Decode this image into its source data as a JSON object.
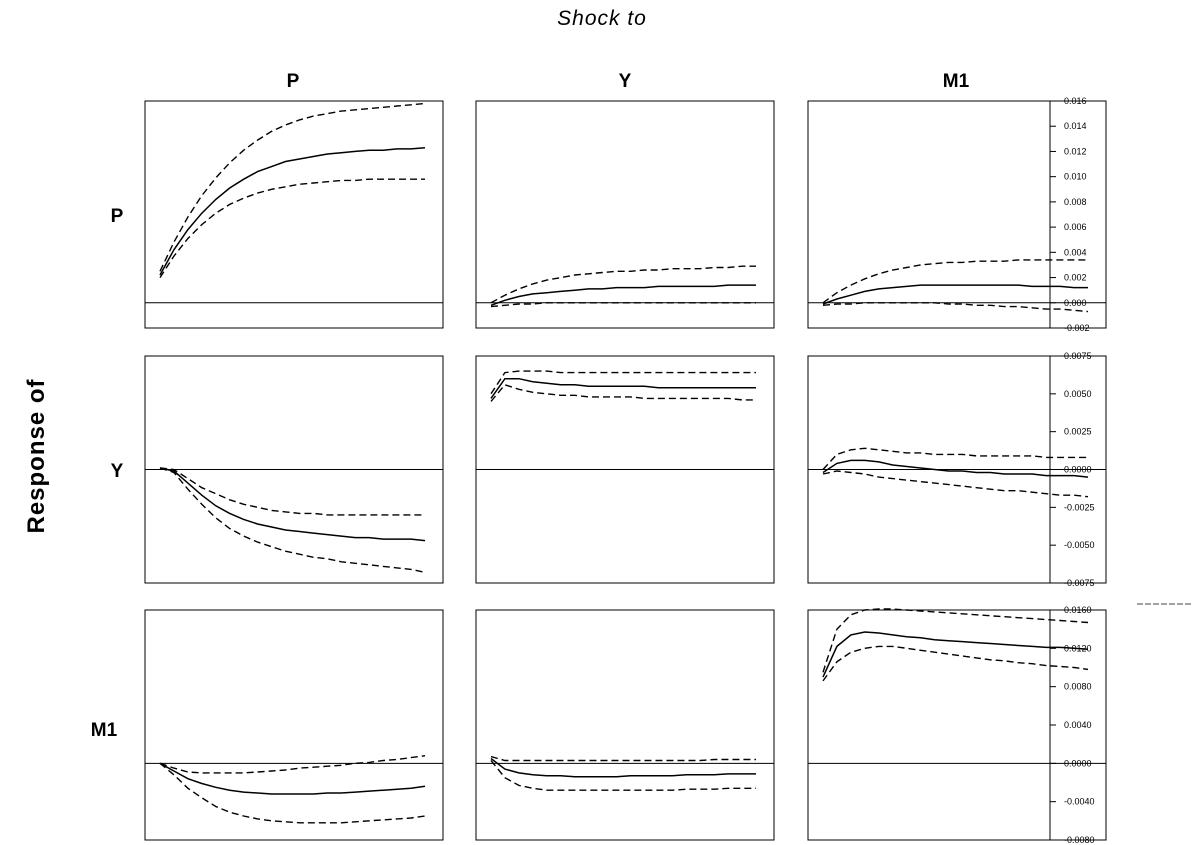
{
  "header": {
    "title": "Shock to"
  },
  "side": {
    "ylabel": "Response of"
  },
  "columns": [
    "P",
    "Y",
    "M1"
  ],
  "rows": [
    "P",
    "Y",
    "M1"
  ],
  "chart_data": {
    "type": "line",
    "layout": "3x3 panel grid of impulse responses (shared y-axis per row, shown on right)",
    "title": "Shock to",
    "ylabel": "Response of",
    "grid": false,
    "rows": [
      {
        "name": "P",
        "ylim": [
          -0.002,
          0.016
        ],
        "yticks": [
          "0.016",
          "0.014",
          "0.012",
          "0.010",
          "0.008",
          "0.006",
          "0.004",
          "0.002",
          "0.000",
          "-0.002"
        ],
        "ytick_values": [
          0.016,
          0.014,
          0.012,
          0.01,
          0.008,
          0.006,
          0.004,
          0.002,
          0.0,
          -0.002
        ],
        "panels": [
          {
            "shock": "P",
            "x": [
              1,
              2,
              3,
              4,
              5,
              6,
              7,
              8,
              9,
              10,
              11,
              12,
              13,
              14,
              15,
              16,
              17,
              18,
              19,
              20
            ],
            "response": [
              0.0022,
              0.0042,
              0.0058,
              0.0071,
              0.0082,
              0.0091,
              0.0098,
              0.0104,
              0.0108,
              0.0112,
              0.0114,
              0.0116,
              0.0118,
              0.0119,
              0.012,
              0.0121,
              0.0121,
              0.0122,
              0.0122,
              0.0123
            ],
            "upper": [
              0.0025,
              0.0048,
              0.0068,
              0.0085,
              0.0099,
              0.0111,
              0.0121,
              0.0129,
              0.0136,
              0.0141,
              0.0145,
              0.0148,
              0.015,
              0.0152,
              0.0153,
              0.0154,
              0.0155,
              0.0156,
              0.0157,
              0.0158
            ],
            "lower": [
              0.002,
              0.0037,
              0.0051,
              0.0062,
              0.0071,
              0.0078,
              0.0083,
              0.0087,
              0.009,
              0.0092,
              0.0094,
              0.0095,
              0.0096,
              0.0097,
              0.0097,
              0.0098,
              0.0098,
              0.0098,
              0.0098,
              0.0098
            ]
          },
          {
            "shock": "Y",
            "x": [
              1,
              2,
              3,
              4,
              5,
              6,
              7,
              8,
              9,
              10,
              11,
              12,
              13,
              14,
              15,
              16,
              17,
              18,
              19,
              20
            ],
            "response": [
              -0.0002,
              0.0002,
              0.0005,
              0.0007,
              0.0008,
              0.0009,
              0.001,
              0.0011,
              0.0011,
              0.0012,
              0.0012,
              0.0012,
              0.0013,
              0.0013,
              0.0013,
              0.0013,
              0.0013,
              0.0014,
              0.0014,
              0.0014
            ],
            "upper": [
              0.0,
              0.0006,
              0.0011,
              0.0015,
              0.0018,
              0.002,
              0.0022,
              0.0023,
              0.0024,
              0.0025,
              0.0025,
              0.0026,
              0.0026,
              0.0027,
              0.0027,
              0.0027,
              0.0028,
              0.0028,
              0.0029,
              0.0029
            ],
            "lower": [
              -0.0003,
              -0.0002,
              -0.0001,
              -0.0001,
              0.0,
              0.0,
              0.0,
              0.0,
              0.0,
              0.0,
              0.0,
              0.0,
              0.0,
              0.0,
              0.0,
              0.0,
              0.0,
              0.0,
              0.0,
              0.0
            ]
          },
          {
            "shock": "M1",
            "x": [
              1,
              2,
              3,
              4,
              5,
              6,
              7,
              8,
              9,
              10,
              11,
              12,
              13,
              14,
              15,
              16,
              17,
              18,
              19,
              20
            ],
            "response": [
              -0.0001,
              0.0003,
              0.0006,
              0.0009,
              0.0011,
              0.0012,
              0.0013,
              0.0014,
              0.0014,
              0.0014,
              0.0014,
              0.0014,
              0.0014,
              0.0014,
              0.0014,
              0.0013,
              0.0013,
              0.0013,
              0.0012,
              0.0012
            ],
            "upper": [
              0.0,
              0.0008,
              0.0014,
              0.0019,
              0.0023,
              0.0026,
              0.0028,
              0.003,
              0.0031,
              0.0032,
              0.0032,
              0.0033,
              0.0033,
              0.0033,
              0.0034,
              0.0034,
              0.0034,
              0.0034,
              0.0034,
              0.0034
            ],
            "lower": [
              -0.0002,
              -0.0001,
              -0.0001,
              0.0,
              0.0,
              0.0,
              0.0,
              0.0,
              0.0,
              -0.0001,
              -0.0001,
              -0.0002,
              -0.0002,
              -0.0003,
              -0.0003,
              -0.0004,
              -0.0005,
              -0.0005,
              -0.0006,
              -0.0007
            ]
          }
        ]
      },
      {
        "name": "Y",
        "ylim": [
          -0.0075,
          0.0075
        ],
        "yticks": [
          "0.0075",
          "0.0050",
          "0.0025",
          "0.0000",
          "-0.0025",
          "-0.0050",
          "-0.0075"
        ],
        "ytick_values": [
          0.0075,
          0.005,
          0.0025,
          0.0,
          -0.0025,
          -0.005,
          -0.0075
        ],
        "panels": [
          {
            "shock": "P",
            "x": [
              1,
              2,
              3,
              4,
              5,
              6,
              7,
              8,
              9,
              10,
              11,
              12,
              13,
              14,
              15,
              16,
              17,
              18,
              19,
              20
            ],
            "response": [
              0.0001,
              -0.0001,
              -0.0009,
              -0.0017,
              -0.0024,
              -0.0029,
              -0.0033,
              -0.0036,
              -0.0038,
              -0.004,
              -0.0041,
              -0.0042,
              -0.0043,
              -0.0044,
              -0.0045,
              -0.0045,
              -0.0046,
              -0.0046,
              -0.0046,
              -0.0047
            ],
            "upper": [
              0.0001,
              0.0,
              -0.0006,
              -0.0012,
              -0.0016,
              -0.002,
              -0.0023,
              -0.0025,
              -0.0027,
              -0.0028,
              -0.0029,
              -0.0029,
              -0.003,
              -0.003,
              -0.003,
              -0.003,
              -0.003,
              -0.003,
              -0.003,
              -0.003
            ],
            "lower": [
              0.0001,
              -0.0002,
              -0.0013,
              -0.0023,
              -0.0032,
              -0.0039,
              -0.0044,
              -0.0048,
              -0.0051,
              -0.0054,
              -0.0056,
              -0.0058,
              -0.0059,
              -0.0061,
              -0.0062,
              -0.0063,
              -0.0064,
              -0.0065,
              -0.0066,
              -0.0068
            ]
          },
          {
            "shock": "Y",
            "x": [
              1,
              2,
              3,
              4,
              5,
              6,
              7,
              8,
              9,
              10,
              11,
              12,
              13,
              14,
              15,
              16,
              17,
              18,
              19,
              20
            ],
            "response": [
              0.0047,
              0.006,
              0.006,
              0.0058,
              0.0057,
              0.0056,
              0.0056,
              0.0055,
              0.0055,
              0.0055,
              0.0055,
              0.0055,
              0.0054,
              0.0054,
              0.0054,
              0.0054,
              0.0054,
              0.0054,
              0.0054,
              0.0054
            ],
            "upper": [
              0.005,
              0.0064,
              0.0065,
              0.0065,
              0.0065,
              0.0064,
              0.0064,
              0.0064,
              0.0064,
              0.0064,
              0.0064,
              0.0064,
              0.0064,
              0.0064,
              0.0064,
              0.0064,
              0.0064,
              0.0064,
              0.0064,
              0.0064
            ],
            "lower": [
              0.0045,
              0.0056,
              0.0053,
              0.0051,
              0.005,
              0.0049,
              0.0049,
              0.0048,
              0.0048,
              0.0048,
              0.0048,
              0.0047,
              0.0047,
              0.0047,
              0.0047,
              0.0047,
              0.0047,
              0.0047,
              0.0046,
              0.0046
            ]
          },
          {
            "shock": "M1",
            "x": [
              1,
              2,
              3,
              4,
              5,
              6,
              7,
              8,
              9,
              10,
              11,
              12,
              13,
              14,
              15,
              16,
              17,
              18,
              19,
              20
            ],
            "response": [
              -0.0002,
              0.0004,
              0.0006,
              0.0006,
              0.0005,
              0.0003,
              0.0002,
              0.0001,
              0.0,
              -0.0001,
              -0.0001,
              -0.0002,
              -0.0002,
              -0.0003,
              -0.0003,
              -0.0003,
              -0.0004,
              -0.0004,
              -0.0004,
              -0.0005
            ],
            "upper": [
              0.0,
              0.001,
              0.0013,
              0.0014,
              0.0013,
              0.0012,
              0.0011,
              0.0011,
              0.001,
              0.001,
              0.001,
              0.0009,
              0.0009,
              0.0009,
              0.0009,
              0.0009,
              0.0008,
              0.0008,
              0.0008,
              0.0008
            ],
            "lower": [
              -0.0003,
              -0.0001,
              -0.0002,
              -0.0003,
              -0.0005,
              -0.0006,
              -0.0007,
              -0.0008,
              -0.0009,
              -0.001,
              -0.0011,
              -0.0012,
              -0.0013,
              -0.0014,
              -0.0014,
              -0.0015,
              -0.0016,
              -0.0017,
              -0.0017,
              -0.0018
            ]
          }
        ]
      },
      {
        "name": "M1",
        "ylim": [
          -0.008,
          0.016
        ],
        "yticks": [
          "0.0160",
          "0.0120",
          "0.0080",
          "0.0040",
          "0.0000",
          "-0.0040",
          "-0.0080"
        ],
        "ytick_values": [
          0.016,
          0.012,
          0.008,
          0.004,
          0.0,
          -0.004,
          -0.008
        ],
        "panels": [
          {
            "shock": "P",
            "x": [
              1,
              2,
              3,
              4,
              5,
              6,
              7,
              8,
              9,
              10,
              11,
              12,
              13,
              14,
              15,
              16,
              17,
              18,
              19,
              20
            ],
            "response": [
              0.0,
              -0.0008,
              -0.0016,
              -0.0021,
              -0.0025,
              -0.0028,
              -0.003,
              -0.0031,
              -0.0032,
              -0.0032,
              -0.0032,
              -0.0032,
              -0.0031,
              -0.0031,
              -0.003,
              -0.0029,
              -0.0028,
              -0.0027,
              -0.0026,
              -0.0024
            ],
            "upper": [
              0.0,
              -0.0005,
              -0.0009,
              -0.001,
              -0.001,
              -0.001,
              -0.001,
              -0.0009,
              -0.0008,
              -0.0007,
              -0.0005,
              -0.0004,
              -0.0003,
              -0.0002,
              0.0,
              0.0001,
              0.0003,
              0.0004,
              0.0006,
              0.0008
            ],
            "lower": [
              0.0,
              -0.0012,
              -0.0026,
              -0.0036,
              -0.0045,
              -0.0051,
              -0.0055,
              -0.0058,
              -0.006,
              -0.0061,
              -0.0062,
              -0.0062,
              -0.0062,
              -0.0062,
              -0.0061,
              -0.006,
              -0.0059,
              -0.0058,
              -0.0057,
              -0.0055
            ]
          },
          {
            "shock": "Y",
            "x": [
              1,
              2,
              3,
              4,
              5,
              6,
              7,
              8,
              9,
              10,
              11,
              12,
              13,
              14,
              15,
              16,
              17,
              18,
              19,
              20
            ],
            "response": [
              0.0005,
              -0.0006,
              -0.001,
              -0.0012,
              -0.0013,
              -0.0013,
              -0.0014,
              -0.0014,
              -0.0014,
              -0.0014,
              -0.0013,
              -0.0013,
              -0.0013,
              -0.0013,
              -0.0012,
              -0.0012,
              -0.0012,
              -0.0011,
              -0.0011,
              -0.0011
            ],
            "upper": [
              0.0007,
              0.0003,
              0.0003,
              0.0003,
              0.0003,
              0.0003,
              0.0003,
              0.0003,
              0.0003,
              0.0003,
              0.0003,
              0.0003,
              0.0003,
              0.0003,
              0.0003,
              0.0003,
              0.0004,
              0.0004,
              0.0004,
              0.0004
            ],
            "lower": [
              0.0003,
              -0.0015,
              -0.0023,
              -0.0026,
              -0.0028,
              -0.0028,
              -0.0028,
              -0.0028,
              -0.0028,
              -0.0028,
              -0.0028,
              -0.0028,
              -0.0028,
              -0.0028,
              -0.0027,
              -0.0027,
              -0.0027,
              -0.0026,
              -0.0026,
              -0.0026
            ]
          },
          {
            "shock": "M1",
            "x": [
              1,
              2,
              3,
              4,
              5,
              6,
              7,
              8,
              9,
              10,
              11,
              12,
              13,
              14,
              15,
              16,
              17,
              18,
              19,
              20
            ],
            "response": [
              0.009,
              0.0122,
              0.0134,
              0.0137,
              0.0136,
              0.0134,
              0.0132,
              0.0131,
              0.0129,
              0.0128,
              0.0127,
              0.0126,
              0.0125,
              0.0124,
              0.0123,
              0.0122,
              0.0121,
              0.0121,
              0.012,
              0.0119
            ],
            "upper": [
              0.0095,
              0.014,
              0.0155,
              0.016,
              0.0161,
              0.0161,
              0.016,
              0.0159,
              0.0158,
              0.0157,
              0.0156,
              0.0155,
              0.0154,
              0.0153,
              0.0152,
              0.0151,
              0.015,
              0.0149,
              0.0148,
              0.0147
            ],
            "lower": [
              0.0086,
              0.0106,
              0.0116,
              0.012,
              0.0122,
              0.0122,
              0.012,
              0.0118,
              0.0116,
              0.0114,
              0.0112,
              0.011,
              0.0108,
              0.0107,
              0.0105,
              0.0104,
              0.0102,
              0.0101,
              0.01,
              0.0098
            ]
          }
        ]
      }
    ]
  }
}
